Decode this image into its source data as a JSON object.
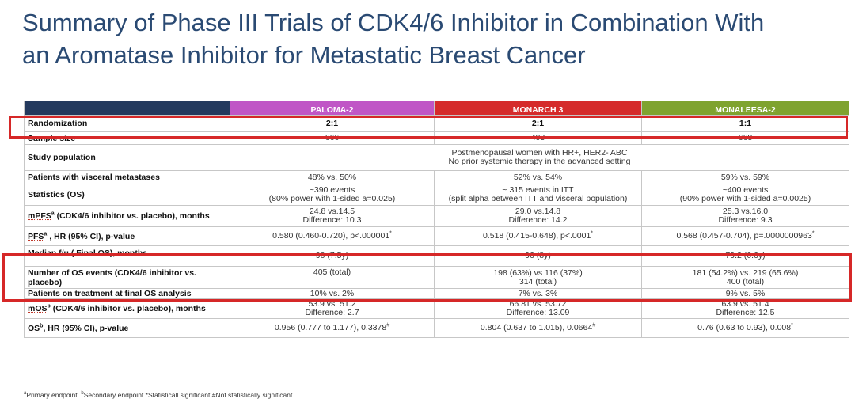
{
  "title": {
    "line1": "Summary of Phase III Trials of CDK4/6 Inhibitor in Combination With",
    "line2": "an Aromatase Inhibitor for Metastatic Breast Cancer"
  },
  "table": {
    "headers": [
      "PALOMA-2",
      "MONARCH 3",
      "MONALEESA-2"
    ],
    "header_colors": {
      "corner": "#243a5e",
      "paloma": "#c056c6",
      "monarch": "#d52b2b",
      "monaleesa": "#7fa32f"
    },
    "rows": {
      "randomization": {
        "label": "Randomization",
        "values": [
          "2:1",
          "2:1",
          "1:1"
        ]
      },
      "sample_size": {
        "label": "Sample size",
        "values": [
          "666",
          "493",
          "668"
        ]
      },
      "study_population": {
        "label": "Study population",
        "line1": "Postmenopausal women with HR+, HER2- ABC",
        "line2": "No prior systemic therapy in the advanced setting"
      },
      "visceral": {
        "label": "Patients with visceral metastases",
        "values": [
          "48% vs. 50%",
          "52% vs. 54%",
          "59% vs. 59%"
        ]
      },
      "statistics": {
        "label": "Statistics (OS)",
        "values": [
          {
            "l1": "~390 events",
            "l2": "(80% power with 1-sided a=0.025)"
          },
          {
            "l1": "~ 315 events in ITT",
            "l2": "(split alpha between ITT and visceral population)"
          },
          {
            "l1": "~400 events",
            "l2": "(90% power with 1-sided a=0.0025)"
          }
        ]
      },
      "mpfs": {
        "label_pre": "mPFS",
        "label_sup": "a",
        "label_post": " (CDK4/6 inhibitor vs. placebo), months",
        "values": [
          {
            "l1": "24.8 vs.14.5",
            "l2": "Difference: 10.3"
          },
          {
            "l1": "29.0 vs.14.8",
            "l2": "Difference: 14.2"
          },
          {
            "l1": "25.3 vs.16.0",
            "l2": "Difference: 9.3"
          }
        ]
      },
      "pfs": {
        "label_pre": "PFS",
        "label_sup": "a",
        "label_post": " , HR (95% CI), p-value",
        "values": [
          "0.580 (0.460-0.720), p<.000001",
          "0.518 (0.415-0.648), p<.0001",
          "0.568 (0.457-0.704), p=.0000000963"
        ],
        "marks": [
          "*",
          "*",
          "*"
        ]
      },
      "median_fu": {
        "label": "Median f/u ( Final OS), months",
        "values": [
          "90 (7.5y)",
          "96 (8y)",
          "79.2 (6.6y)"
        ]
      },
      "os_events": {
        "label": "Number of OS events (CDK4/6 inhibitor vs. placebo)",
        "values": [
          {
            "l1": "405 (total)",
            "l2": ""
          },
          {
            "l1": "198 (63%) vs 116 (37%)",
            "l2": "314 (total)"
          },
          {
            "l1": "181 (54.2%) vs. 219 (65.6%)",
            "l2": "400 (total)"
          }
        ]
      },
      "on_treatment": {
        "label": "Patients on treatment at final OS analysis",
        "values": [
          "10% vs. 2%",
          "7% vs. 3%",
          "9% vs. 5%"
        ]
      },
      "mos": {
        "label_pre": "mOS",
        "label_sup": "b",
        "label_post": " (CDK4/6 inhibitor vs. placebo), months",
        "values": [
          {
            "l1": "53.9 vs. 51.2",
            "l2": "Difference: 2.7"
          },
          {
            "l1": "66.81 vs. 53.72",
            "l2": "Difference: 13.09"
          },
          {
            "l1": "63.9 vs. 51.4",
            "l2": "Difference: 12.5"
          }
        ]
      },
      "os": {
        "label_pre": "OS",
        "label_sup": "b",
        "label_post": ", HR (95% CI), p-value",
        "values": [
          "0.956 (0.777 to 1.177), 0.3378",
          "0.804 (0.637 to 1.015), 0.0664",
          "0.76 (0.63 to 0.93), 0.008"
        ],
        "marks": [
          "#",
          "#",
          "*"
        ]
      }
    }
  },
  "highlight_color": "#d62828",
  "footnote": {
    "a_sup": "a",
    "a_text": "Primary endpoint. ",
    "b_sup": "b",
    "b_text": "Secondary endpoint *Statisticall significant #Not statistically significant"
  }
}
